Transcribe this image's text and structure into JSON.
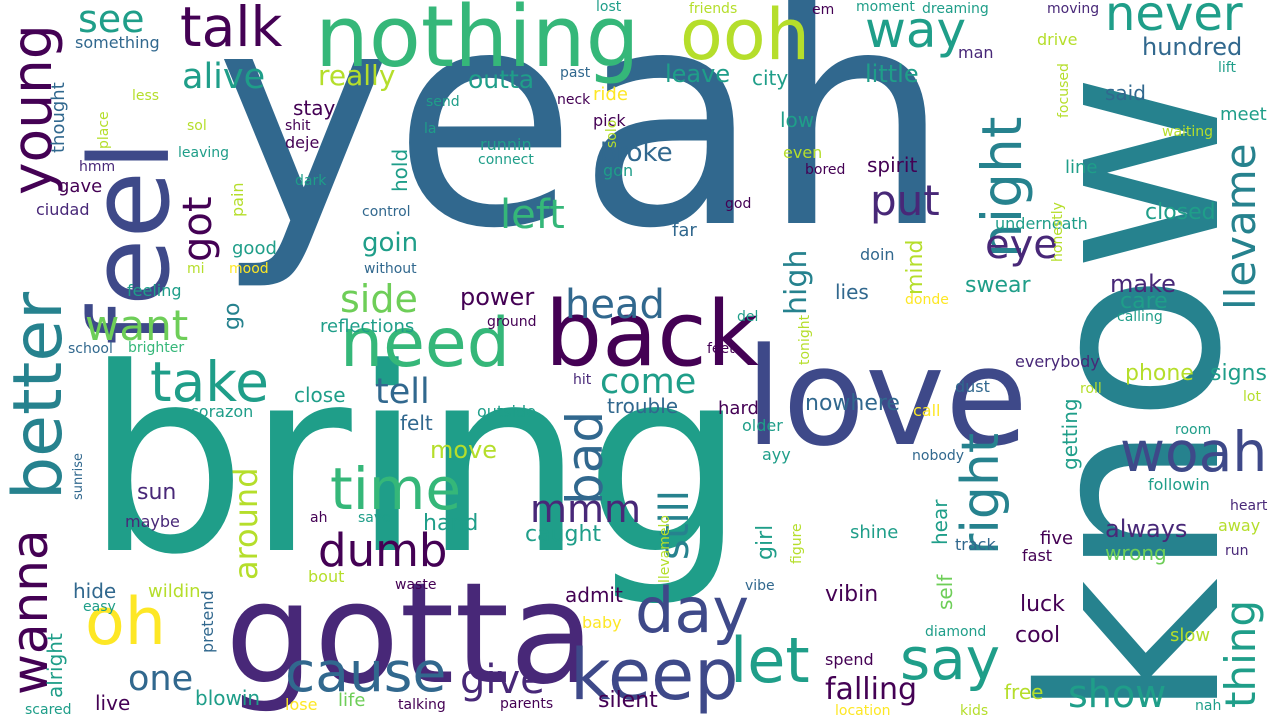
{
  "palette": {
    "purple_dark": "#440154",
    "purple": "#482878",
    "indigo": "#3e4989",
    "blue": "#31688e",
    "teal_blue": "#26828e",
    "teal": "#1f9e89",
    "green": "#35b779",
    "lime": "#6ece58",
    "yellow_green": "#b5de2b",
    "yellow": "#fde725"
  },
  "words": [
    "yeah",
    "know",
    "bring",
    "love",
    "gotta",
    "feel",
    "nothing",
    "back",
    "better",
    "ooh",
    "need",
    "night",
    "time",
    "young",
    "oh",
    "keep",
    "day",
    "let",
    "bad",
    "say",
    "cause",
    "take",
    "woah",
    "llevame",
    "right",
    "wanna",
    "thing",
    "got",
    "left",
    "dumb",
    "talk",
    "way",
    "never",
    "put",
    "want",
    "see",
    "side",
    "head",
    "alive",
    "one",
    "give",
    "mmm",
    "still",
    "eye",
    "show",
    "come",
    "tell",
    "around",
    "falling",
    "high",
    "really",
    "outta",
    "leave",
    "city",
    "little",
    "hundred",
    "always",
    "goin",
    "power",
    "broke",
    "make",
    "move",
    "sun",
    "caught",
    "hand",
    "girl",
    "vibin",
    "mind",
    "swear",
    "care",
    "phone",
    "signs",
    "lies",
    "nowhere",
    "trouble",
    "hard",
    "felt",
    "close",
    "reflections",
    "go",
    "said",
    "meet",
    "low",
    "spirit",
    "line",
    "closed",
    "underneath",
    "getting",
    "self",
    "hear",
    "luck",
    "cool",
    "five",
    "wrong",
    "hide",
    "alright",
    "wildin",
    "admit",
    "blowin",
    "live",
    "silent",
    "free",
    "life",
    "stay",
    "hold",
    "deje",
    "pain",
    "good",
    "gave",
    "thought",
    "something",
    "ride",
    "pick",
    "solo",
    "gon",
    "runnin",
    "connect",
    "even",
    "bored",
    "far",
    "doin",
    "god",
    "donde",
    "del",
    "feet",
    "tonight",
    "everybody",
    "dust",
    "roll",
    "lot",
    "call",
    "older",
    "ayy",
    "nobody",
    "followin",
    "heart",
    "away",
    "run",
    "track",
    "fast",
    "shine",
    "figure",
    "llevamelo",
    "vibe",
    "diamond",
    "spend",
    "slow",
    "baby",
    "pretend",
    "bout",
    "maybe",
    "save",
    "ah",
    "waste",
    "easy",
    "sunrise",
    "corazon",
    "hit",
    "outside",
    "school",
    "brighter",
    "feeling",
    "mood",
    "mi",
    "without",
    "control",
    "dark",
    "leaving",
    "sol",
    "hmm",
    "place",
    "less",
    "ciudad",
    "shit",
    "la",
    "send",
    "neck",
    "past",
    "lost",
    "friends",
    "em",
    "moment",
    "dreaming",
    "moving",
    "drive",
    "man",
    "focused",
    "lift",
    "waiting",
    "honestly",
    "calling",
    "ground",
    "room",
    "nah",
    "kids",
    "location",
    "parents",
    "talking",
    "scared",
    "lose"
  ]
}
